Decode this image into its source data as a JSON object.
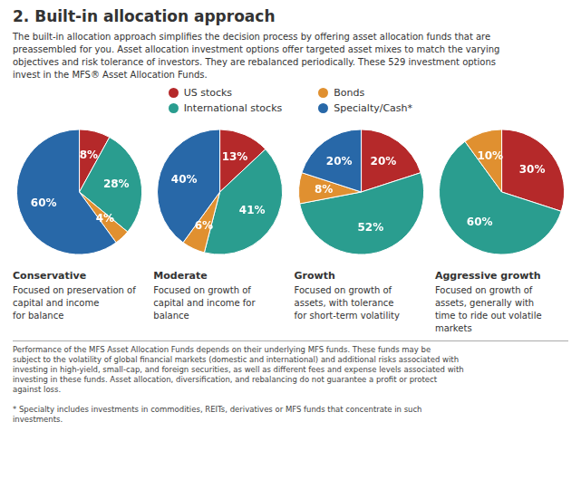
{
  "title": "2. Built-in allocation approach",
  "subtitle": "The built-in allocation approach simplifies the decision process by offering asset allocation funds that are\npreassembled for you. Asset allocation investment options offer targeted asset mixes to match the varying\nobjectives and risk tolerance of investors. They are rebalanced periodically. These 529 investment options\ninvest in the MFS® Asset Allocation Funds.",
  "annotations": [
    "Performance of the MFS Asset Allocation Funds depends on their underlying MFS funds. These funds may be\nsubject to the volatility of global financial markets (domestic and international) and additional risks associated with\ninvesting in high-yield, small-cap, and foreign securities, as well as different fees and expense levels associated with\ninvesting in these funds. Asset allocation, diversification, and rebalancing do not guarantee a profit or protect\nagainst loss.\n\n* Specialty includes investments in commodities, REITs, derivatives or MFS funds that concentrate in such\ninvestments."
  ],
  "legend": "top",
  "chart_data": [
    {
      "type": "pie",
      "title": "Conservative",
      "subtitle": "Focused on preservation of\ncapital and income\nfor balance",
      "categories": [
        "US stocks",
        "International stocks",
        "Bonds",
        "Specialty/Cash*"
      ],
      "values": [
        8,
        28,
        4,
        60
      ],
      "value_labels": [
        "8%",
        "28%",
        "4%",
        "60%"
      ],
      "colors": [
        "#b5292a",
        "#2a9d8f",
        "#e09030",
        "#2868a8"
      ],
      "data_labels": true
    },
    {
      "type": "pie",
      "title": "Moderate",
      "subtitle": "Focused on growth of\ncapital and income for\nbalance",
      "categories": [
        "US stocks",
        "International stocks",
        "Bonds",
        "Specialty/Cash*"
      ],
      "values": [
        13,
        41,
        6,
        40
      ],
      "value_labels": [
        "13%",
        "41%",
        "6%",
        "40%"
      ],
      "colors": [
        "#b5292a",
        "#2a9d8f",
        "#e09030",
        "#2868a8"
      ],
      "data_labels": true
    },
    {
      "type": "pie",
      "title": "Growth",
      "subtitle": "Focused on growth of\nassets, with tolerance\nfor short-term volatility",
      "categories": [
        "US stocks",
        "International stocks",
        "Bonds",
        "Specialty/Cash*"
      ],
      "values": [
        20,
        52,
        8,
        20
      ],
      "value_labels": [
        "20%",
        "52%",
        "8%",
        "20%"
      ],
      "colors": [
        "#b5292a",
        "#2a9d8f",
        "#e09030",
        "#2868a8"
      ],
      "data_labels": true
    },
    {
      "type": "pie",
      "title": "Aggressive growth",
      "subtitle": "Focused on growth of\nassets, generally with\ntime to ride out volatile\nmarkets",
      "categories": [
        "US stocks",
        "International stocks",
        "Bonds",
        "Specialty/Cash*"
      ],
      "values": [
        30,
        60,
        10,
        0
      ],
      "value_labels": [
        "30%",
        "60%",
        "10%",
        null
      ],
      "colors": [
        "#b5292a",
        "#2a9d8f",
        "#e09030",
        "#2868a8"
      ],
      "data_labels": true
    }
  ]
}
